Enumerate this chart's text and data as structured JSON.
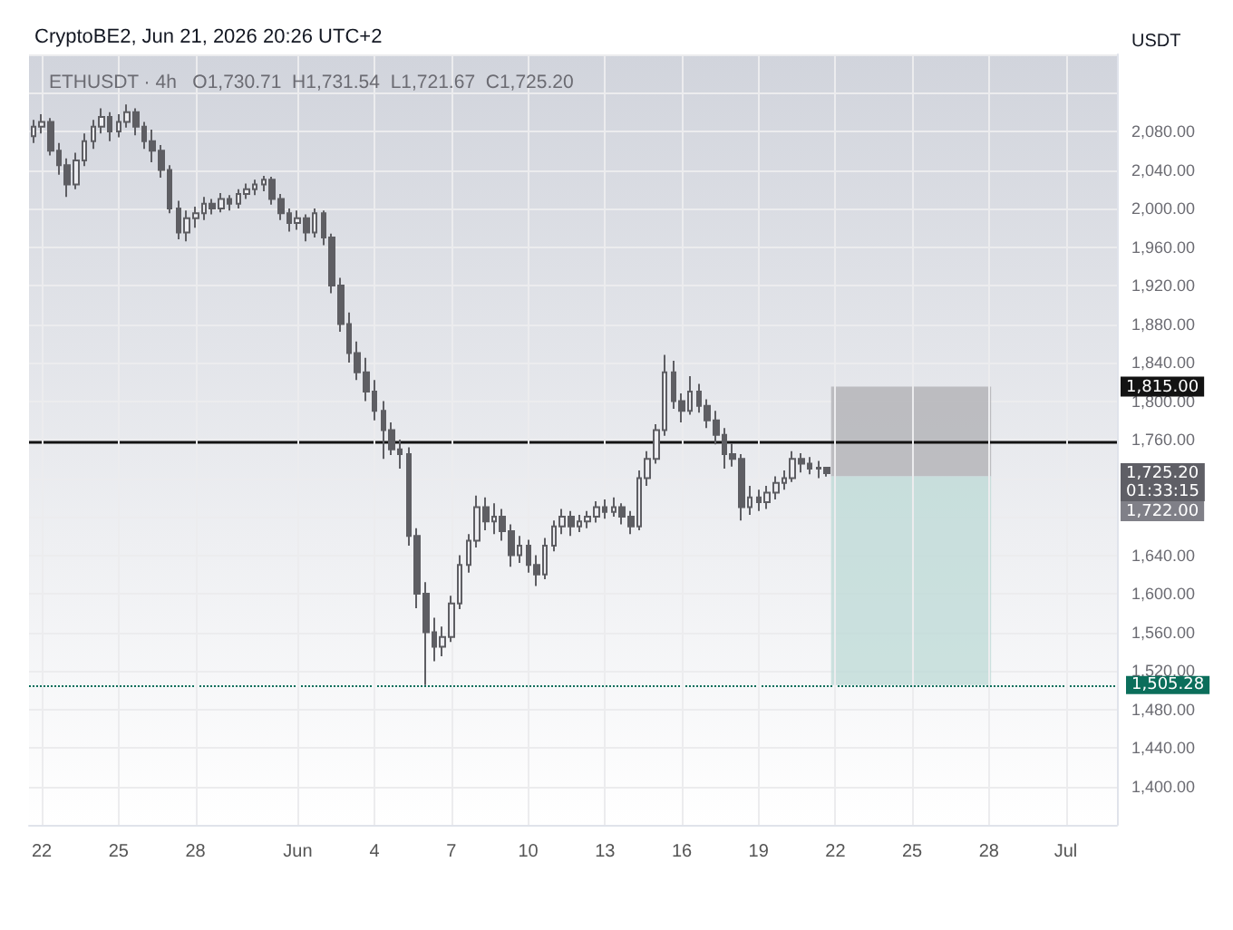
{
  "chart_data": {
    "type": "candlestick",
    "title": "CryptoBE2, Jun 21, 2026 20:26 UTC+2",
    "subtitle": "ETHUSDT · 4h   O1,730.71  H1,731.54  L1,721.67  C1,725.20",
    "ylabel": "USDT",
    "xlim": [
      "2026-05-21T12:00",
      "2026-07-03T00:00"
    ],
    "xticks": [
      {
        "value": "2026-05-22",
        "label": "22"
      },
      {
        "value": "2026-05-25",
        "label": "25"
      },
      {
        "value": "2026-05-28",
        "label": "28"
      },
      {
        "value": "2026-06-01",
        "label": "Jun"
      },
      {
        "value": "2026-06-04",
        "label": "4"
      },
      {
        "value": "2026-06-07",
        "label": "7"
      },
      {
        "value": "2026-06-10",
        "label": "10"
      },
      {
        "value": "2026-06-13",
        "label": "13"
      },
      {
        "value": "2026-06-16",
        "label": "16"
      },
      {
        "value": "2026-06-19",
        "label": "19"
      },
      {
        "value": "2026-06-22",
        "label": "22"
      },
      {
        "value": "2026-06-25",
        "label": "25"
      },
      {
        "value": "2026-06-28",
        "label": "28"
      },
      {
        "value": "2026-07-01",
        "label": "Jul"
      }
    ],
    "ylim": [
      1360,
      2160
    ],
    "yticks": [
      {
        "value": 1400,
        "label": "1,400.00"
      },
      {
        "value": 1440,
        "label": "1,440.00"
      },
      {
        "value": 1480,
        "label": "1,480.00"
      },
      {
        "value": 1520,
        "label": "1,520.00"
      },
      {
        "value": 1560,
        "label": "1,560.00"
      },
      {
        "value": 1600,
        "label": "1,600.00"
      },
      {
        "value": 1640,
        "label": "1,640.00"
      },
      {
        "value": 1760,
        "label": "1,760.00"
      },
      {
        "value": 1800,
        "label": "1,800.00"
      },
      {
        "value": 1840,
        "label": "1,840.00"
      },
      {
        "value": 1880,
        "label": "1,880.00"
      },
      {
        "value": 1920,
        "label": "1,920.00"
      },
      {
        "value": 1960,
        "label": "1,960.00"
      },
      {
        "value": 2000,
        "label": "2,000.00"
      },
      {
        "value": 2040,
        "label": "2,040.00"
      },
      {
        "value": 2080,
        "label": "2,080.00"
      }
    ],
    "grid": true,
    "series": [
      {
        "type": "candlestick",
        "color": "#5e5e63",
        "x": [
          "2026-05-21T16:00",
          "2026-05-22T00:00",
          "2026-05-22T08:00",
          "2026-05-22T16:00",
          "2026-05-23T00:00",
          "2026-05-23T08:00",
          "2026-05-23T16:00",
          "2026-05-24T00:00",
          "2026-05-24T08:00",
          "2026-05-24T16:00",
          "2026-05-25T00:00",
          "2026-05-25T08:00",
          "2026-05-25T16:00",
          "2026-05-26T00:00",
          "2026-05-26T08:00",
          "2026-05-26T16:00",
          "2026-05-27T00:00",
          "2026-05-27T08:00",
          "2026-05-27T16:00",
          "2026-05-28T00:00",
          "2026-05-28T08:00",
          "2026-05-28T16:00",
          "2026-05-29T00:00",
          "2026-05-29T08:00",
          "2026-05-29T16:00",
          "2026-05-30T00:00",
          "2026-05-30T08:00",
          "2026-05-30T16:00",
          "2026-05-31T00:00",
          "2026-05-31T08:00",
          "2026-05-31T16:00",
          "2026-06-01T00:00",
          "2026-06-01T08:00",
          "2026-06-01T16:00",
          "2026-06-02T00:00",
          "2026-06-02T08:00",
          "2026-06-02T16:00",
          "2026-06-03T00:00",
          "2026-06-03T08:00",
          "2026-06-03T16:00",
          "2026-06-04T00:00",
          "2026-06-04T08:00",
          "2026-06-04T16:00",
          "2026-06-05T00:00",
          "2026-06-05T08:00",
          "2026-06-05T16:00",
          "2026-06-06T00:00",
          "2026-06-06T08:00",
          "2026-06-06T16:00",
          "2026-06-07T00:00",
          "2026-06-07T08:00",
          "2026-06-07T16:00",
          "2026-06-08T00:00",
          "2026-06-08T08:00",
          "2026-06-08T16:00",
          "2026-06-09T00:00",
          "2026-06-09T08:00",
          "2026-06-09T16:00",
          "2026-06-10T00:00",
          "2026-06-10T08:00",
          "2026-06-10T16:00",
          "2026-06-11T00:00",
          "2026-06-11T08:00",
          "2026-06-11T16:00",
          "2026-06-12T00:00",
          "2026-06-12T08:00",
          "2026-06-12T16:00",
          "2026-06-13T00:00",
          "2026-06-13T08:00",
          "2026-06-13T16:00",
          "2026-06-14T00:00",
          "2026-06-14T08:00",
          "2026-06-14T16:00",
          "2026-06-15T00:00",
          "2026-06-15T08:00",
          "2026-06-15T16:00",
          "2026-06-16T00:00",
          "2026-06-16T08:00",
          "2026-06-16T16:00",
          "2026-06-17T00:00",
          "2026-06-17T08:00",
          "2026-06-17T16:00",
          "2026-06-18T00:00",
          "2026-06-18T08:00",
          "2026-06-18T16:00",
          "2026-06-19T00:00",
          "2026-06-19T08:00",
          "2026-06-19T16:00",
          "2026-06-20T00:00",
          "2026-06-20T08:00",
          "2026-06-20T16:00",
          "2026-06-21T00:00",
          "2026-06-21T08:00",
          "2026-06-21T16:00"
        ],
        "ohlc": [
          [
            2075,
            2092,
            2068,
            2085
          ],
          [
            2085,
            2098,
            2078,
            2090
          ],
          [
            2090,
            2094,
            2055,
            2060
          ],
          [
            2060,
            2068,
            2035,
            2045
          ],
          [
            2045,
            2052,
            2012,
            2025
          ],
          [
            2025,
            2058,
            2020,
            2050
          ],
          [
            2050,
            2078,
            2044,
            2070
          ],
          [
            2070,
            2092,
            2062,
            2085
          ],
          [
            2085,
            2104,
            2078,
            2095
          ],
          [
            2095,
            2100,
            2070,
            2080
          ],
          [
            2080,
            2098,
            2074,
            2090
          ],
          [
            2090,
            2108,
            2084,
            2100
          ],
          [
            2100,
            2104,
            2076,
            2085
          ],
          [
            2085,
            2090,
            2062,
            2070
          ],
          [
            2070,
            2082,
            2048,
            2060
          ],
          [
            2060,
            2066,
            2032,
            2040
          ],
          [
            2040,
            2045,
            1995,
            2000
          ],
          [
            2000,
            2008,
            1968,
            1975
          ],
          [
            1975,
            1998,
            1966,
            1990
          ],
          [
            1990,
            2002,
            1980,
            1995
          ],
          [
            1995,
            2012,
            1988,
            2005
          ],
          [
            2005,
            2010,
            1994,
            2000
          ],
          [
            2000,
            2016,
            1996,
            2010
          ],
          [
            2010,
            2014,
            1998,
            2005
          ],
          [
            2005,
            2020,
            2000,
            2015
          ],
          [
            2015,
            2026,
            2010,
            2020
          ],
          [
            2020,
            2030,
            2014,
            2025
          ],
          [
            2025,
            2034,
            2018,
            2030
          ],
          [
            2030,
            2033,
            2004,
            2010
          ],
          [
            2010,
            2015,
            1988,
            1995
          ],
          [
            1995,
            2000,
            1976,
            1985
          ],
          [
            1985,
            1998,
            1978,
            1990
          ],
          [
            1990,
            1994,
            1966,
            1975
          ],
          [
            1975,
            2000,
            1970,
            1995
          ],
          [
            1995,
            1998,
            1962,
            1970
          ],
          [
            1970,
            1974,
            1912,
            1920
          ],
          [
            1920,
            1928,
            1872,
            1880
          ],
          [
            1880,
            1892,
            1840,
            1850
          ],
          [
            1850,
            1862,
            1822,
            1830
          ],
          [
            1830,
            1845,
            1800,
            1810
          ],
          [
            1810,
            1822,
            1780,
            1790
          ],
          [
            1790,
            1800,
            1740,
            1770
          ],
          [
            1770,
            1778,
            1744,
            1750
          ],
          [
            1750,
            1760,
            1730,
            1745
          ],
          [
            1745,
            1752,
            1650,
            1660
          ],
          [
            1660,
            1668,
            1585,
            1600
          ],
          [
            1600,
            1612,
            1505.28,
            1560
          ],
          [
            1560,
            1575,
            1530,
            1545
          ],
          [
            1545,
            1566,
            1535,
            1555
          ],
          [
            1555,
            1598,
            1550,
            1590
          ],
          [
            1590,
            1640,
            1584,
            1630
          ],
          [
            1630,
            1662,
            1622,
            1655
          ],
          [
            1655,
            1702,
            1648,
            1690
          ],
          [
            1690,
            1700,
            1666,
            1675
          ],
          [
            1675,
            1694,
            1662,
            1680
          ],
          [
            1680,
            1688,
            1655,
            1665
          ],
          [
            1665,
            1672,
            1628,
            1640
          ],
          [
            1640,
            1660,
            1632,
            1650
          ],
          [
            1650,
            1656,
            1622,
            1630
          ],
          [
            1630,
            1640,
            1608,
            1620
          ],
          [
            1620,
            1658,
            1615,
            1650
          ],
          [
            1650,
            1676,
            1644,
            1670
          ],
          [
            1670,
            1688,
            1662,
            1680
          ],
          [
            1680,
            1686,
            1660,
            1670
          ],
          [
            1670,
            1682,
            1664,
            1675
          ],
          [
            1675,
            1686,
            1668,
            1680
          ],
          [
            1680,
            1696,
            1674,
            1690
          ],
          [
            1690,
            1698,
            1678,
            1685
          ],
          [
            1685,
            1700,
            1680,
            1690
          ],
          [
            1690,
            1694,
            1672,
            1680
          ],
          [
            1680,
            1686,
            1662,
            1670
          ],
          [
            1670,
            1728,
            1666,
            1720
          ],
          [
            1720,
            1748,
            1712,
            1740
          ],
          [
            1740,
            1776,
            1735,
            1770
          ],
          [
            1770,
            1848,
            1764,
            1830
          ],
          [
            1830,
            1842,
            1792,
            1800
          ],
          [
            1800,
            1808,
            1778,
            1790
          ],
          [
            1790,
            1826,
            1786,
            1810
          ],
          [
            1810,
            1818,
            1788,
            1795
          ],
          [
            1795,
            1802,
            1772,
            1780
          ],
          [
            1780,
            1790,
            1755,
            1765
          ],
          [
            1765,
            1772,
            1730,
            1745
          ],
          [
            1745,
            1756,
            1732,
            1740
          ],
          [
            1740,
            1745,
            1676,
            1690
          ],
          [
            1690,
            1712,
            1682,
            1700
          ],
          [
            1700,
            1708,
            1686,
            1695
          ],
          [
            1695,
            1712,
            1688,
            1705
          ],
          [
            1705,
            1722,
            1698,
            1715
          ],
          [
            1715,
            1728,
            1708,
            1720
          ],
          [
            1720,
            1748,
            1716,
            1740
          ],
          [
            1740,
            1746,
            1726,
            1735
          ],
          [
            1735,
            1742,
            1724,
            1730
          ],
          [
            1730,
            1738,
            1720,
            1730.71
          ],
          [
            1730.71,
            1731.54,
            1721.67,
            1725.2
          ]
        ]
      }
    ],
    "ref_lines": [
      {
        "axis": "y",
        "value": 1757,
        "color": "#131313",
        "line_style": "solid"
      },
      {
        "axis": "y",
        "value": 1505.28,
        "label": "1,505.28",
        "color": "#0b6e5b",
        "line_style": "dotted"
      }
    ],
    "bands": [
      {
        "axis": "y",
        "from": 1722,
        "to": 1815,
        "color": "#aeaeb2"
      },
      {
        "axis": "y",
        "from": 1505.28,
        "to": 1722,
        "color": "#bcdad5"
      }
    ],
    "annotations": [
      "1,815.00",
      "1,725.20\n01:33:15",
      "1,722.00"
    ]
  }
}
